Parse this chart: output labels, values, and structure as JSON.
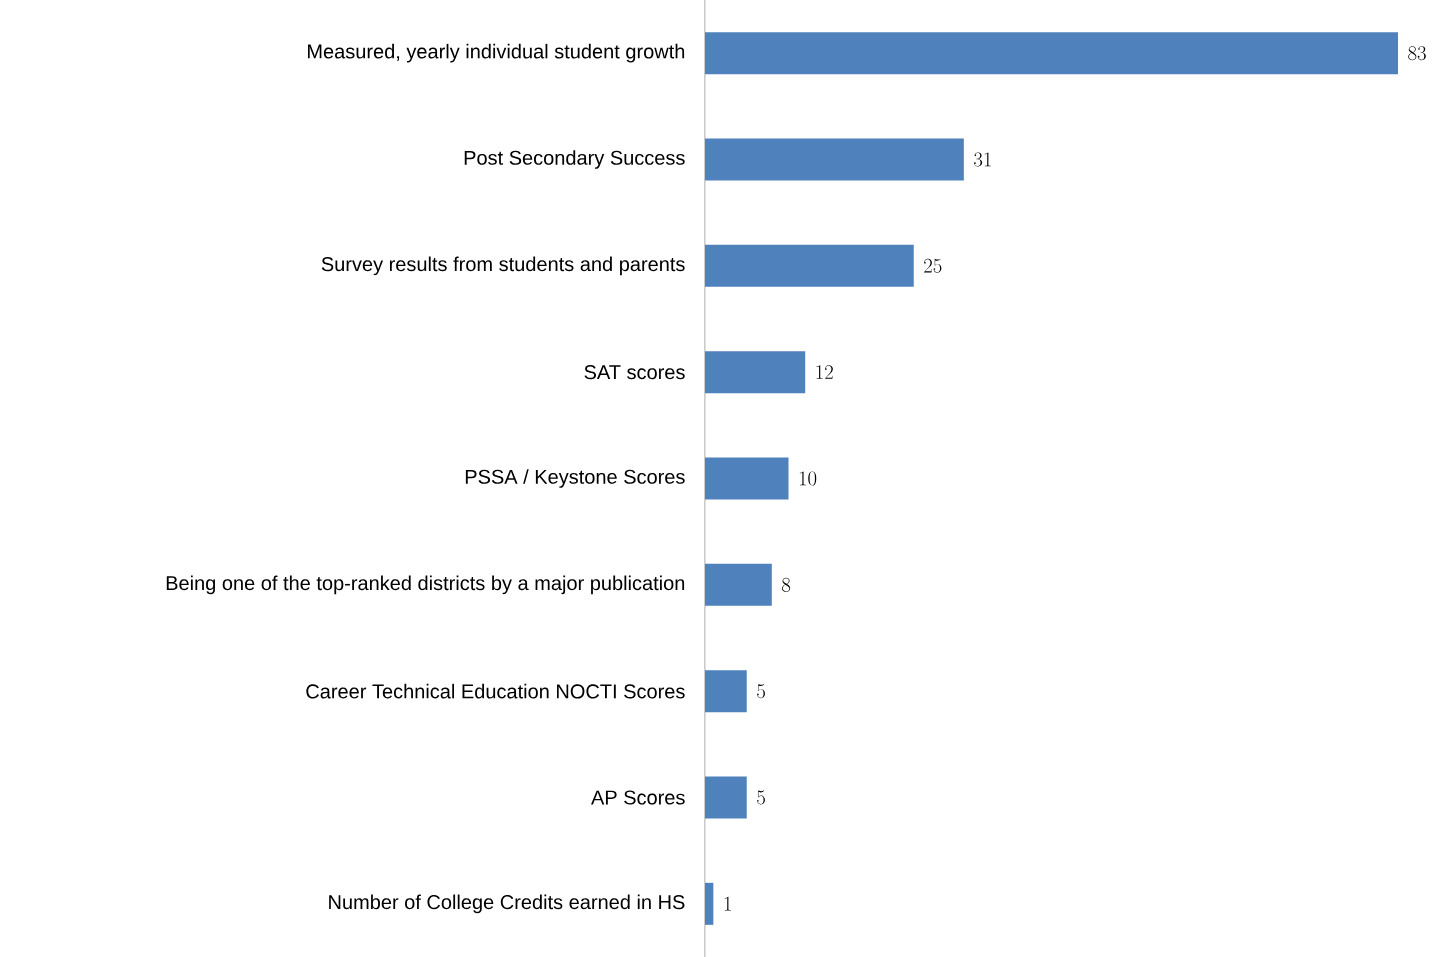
{
  "chart_data": {
    "type": "bar",
    "orientation": "horizontal",
    "categories": [
      "Measured, yearly individual student growth",
      "Post Secondary Success",
      "Survey results from students and parents",
      "SAT scores",
      "PSSA / Keystone Scores",
      "Being one of the top-ranked districts by a major publication",
      "Career Technical Education NOCTI Scores",
      "AP Scores",
      "Number of College Credits earned in HS"
    ],
    "values": [
      83,
      31,
      25,
      12,
      10,
      8,
      5,
      5,
      1
    ],
    "color": "#4f81bd",
    "data_labels": true
  }
}
